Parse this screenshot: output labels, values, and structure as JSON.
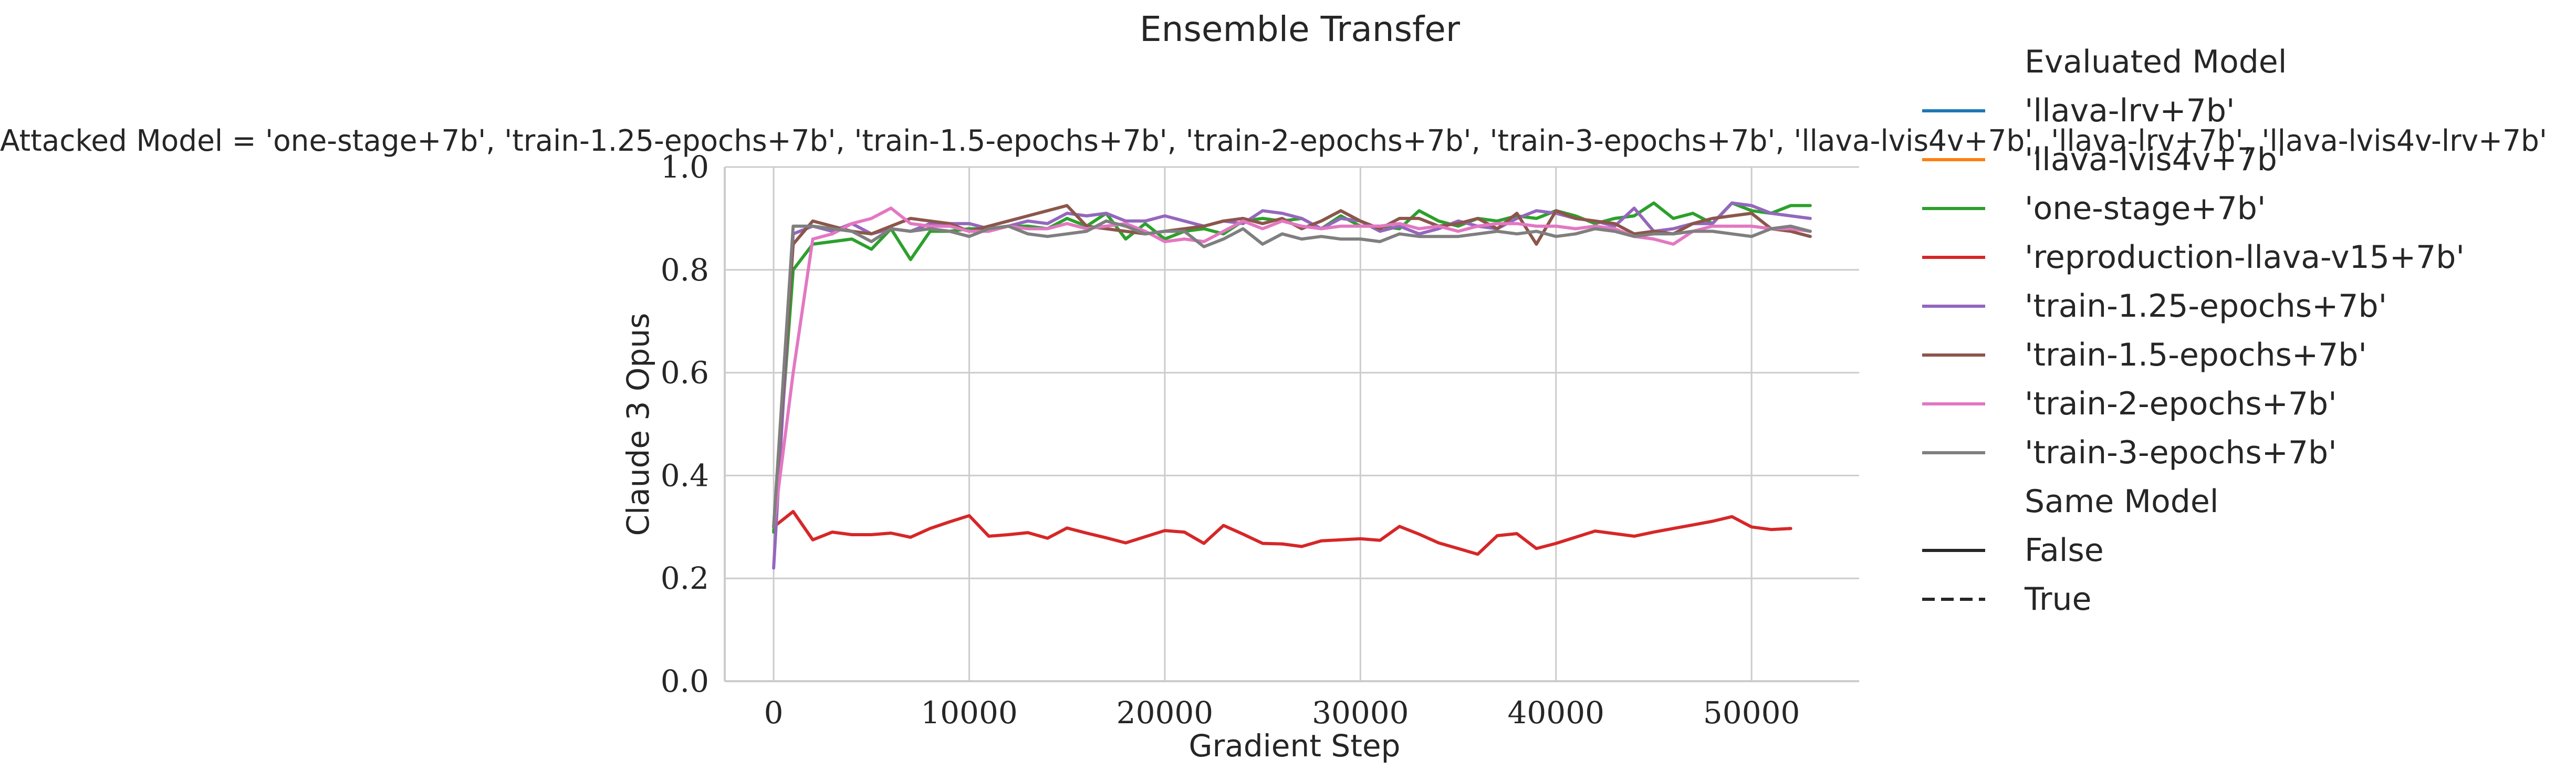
{
  "chart_data": {
    "type": "line",
    "title": "Ensemble Transfer",
    "subtitle": "Attacked Model = 'one-stage+7b', 'train-1.25-epochs+7b', 'train-1.5-epochs+7b', 'train-2-epochs+7b', 'train-3-epochs+7b', 'llava-lvis4v+7b', 'llava-lrv+7b', 'llava-lvis4v-lrv+7b'",
    "xlabel": "Gradient Step",
    "ylabel": "Claude 3 Opus",
    "xlim": [
      -2500,
      55500
    ],
    "ylim": [
      0.0,
      1.0
    ],
    "xticks": [
      0,
      10000,
      20000,
      30000,
      40000,
      50000
    ],
    "yticks": [
      0.0,
      0.2,
      0.4,
      0.6,
      0.8,
      1.0
    ],
    "grid": true,
    "legend": {
      "placement": "outside-right",
      "hue_title": "Evaluated Model",
      "style_title": "Same Model",
      "hue_entries": [
        {
          "name": "'llava-lrv+7b'",
          "color": "#1f77b4"
        },
        {
          "name": "'llava-lvis4v+7b'",
          "color": "#ff7f0e"
        },
        {
          "name": "'one-stage+7b'",
          "color": "#2ca02c"
        },
        {
          "name": "'reproduction-llava-v15+7b'",
          "color": "#d62728"
        },
        {
          "name": "'train-1.25-epochs+7b'",
          "color": "#9467bd"
        },
        {
          "name": "'train-1.5-epochs+7b'",
          "color": "#8c564b"
        },
        {
          "name": "'train-2-epochs+7b'",
          "color": "#e377c2"
        },
        {
          "name": "'train-3-epochs+7b'",
          "color": "#7f7f7f"
        }
      ],
      "style_entries": [
        {
          "name": "False",
          "dash": "solid"
        },
        {
          "name": "True",
          "dash": "dashed"
        }
      ]
    },
    "series": [
      {
        "name": "'one-stage+7b'",
        "color": "#2ca02c",
        "x": [
          0,
          1000,
          2000,
          3000,
          4000,
          5000,
          6000,
          7000,
          8000,
          9000,
          10000,
          11000,
          12000,
          13000,
          14000,
          15000,
          16000,
          17000,
          18000,
          19000,
          20000,
          21000,
          22000,
          23000,
          24000,
          25000,
          26000,
          27000,
          28000,
          29000,
          30000,
          31000,
          32000,
          33000,
          34000,
          35000,
          36000,
          37000,
          38000,
          39000,
          40000,
          41000,
          42000,
          43000,
          44000,
          45000,
          46000,
          47000,
          48000,
          49000,
          50000,
          51000,
          52000,
          53000
        ],
        "y": [
          0.29,
          0.8,
          0.85,
          0.855,
          0.86,
          0.84,
          0.88,
          0.82,
          0.875,
          0.875,
          0.88,
          0.88,
          0.885,
          0.885,
          0.88,
          0.9,
          0.885,
          0.91,
          0.86,
          0.89,
          0.86,
          0.875,
          0.88,
          0.87,
          0.895,
          0.9,
          0.895,
          0.9,
          0.88,
          0.905,
          0.885,
          0.885,
          0.88,
          0.915,
          0.895,
          0.885,
          0.9,
          0.895,
          0.905,
          0.9,
          0.915,
          0.905,
          0.89,
          0.9,
          0.905,
          0.93,
          0.9,
          0.91,
          0.89,
          0.93,
          0.915,
          0.91,
          0.925,
          0.925
        ]
      },
      {
        "name": "'reproduction-llava-v15+7b'",
        "color": "#d62728",
        "x": [
          0,
          1000,
          2000,
          3000,
          4000,
          5000,
          6000,
          7000,
          8000,
          9000,
          10000,
          11000,
          12000,
          13000,
          14000,
          15000,
          16000,
          17000,
          18000,
          19000,
          20000,
          21000,
          22000,
          23000,
          24000,
          25000,
          26000,
          27000,
          28000,
          29000,
          30000,
          31000,
          32000,
          33000,
          34000,
          35000,
          36000,
          37000,
          38000,
          39000,
          40000,
          41000,
          42000,
          43000,
          44000,
          45000,
          46000,
          47000,
          48000,
          49000,
          50000,
          51000,
          52000
        ],
        "y": [
          0.3,
          0.33,
          0.275,
          0.29,
          0.285,
          0.285,
          0.288,
          0.28,
          0.297,
          0.31,
          0.322,
          0.282,
          0.285,
          0.289,
          0.278,
          0.298,
          0.288,
          0.279,
          0.269,
          0.281,
          0.293,
          0.29,
          0.268,
          0.303,
          0.286,
          0.268,
          0.267,
          0.262,
          0.273,
          0.275,
          0.277,
          0.274,
          0.301,
          0.286,
          0.269,
          0.258,
          0.247,
          0.283,
          0.287,
          0.258,
          0.268,
          0.28,
          0.292,
          0.287,
          0.282,
          0.29,
          0.297,
          0.304,
          0.311,
          0.32,
          0.3,
          0.295,
          0.297
        ]
      },
      {
        "name": "'train-1.25-epochs+7b'",
        "color": "#9467bd",
        "x": [
          0,
          1000,
          2000,
          3000,
          4000,
          5000,
          6000,
          7000,
          8000,
          9000,
          10000,
          11000,
          12000,
          13000,
          14000,
          15000,
          16000,
          17000,
          18000,
          19000,
          20000,
          21000,
          22000,
          23000,
          24000,
          25000,
          26000,
          27000,
          28000,
          29000,
          30000,
          31000,
          32000,
          33000,
          34000,
          35000,
          36000,
          37000,
          38000,
          39000,
          40000,
          41000,
          42000,
          43000,
          44000,
          45000,
          46000,
          47000,
          48000,
          49000,
          50000,
          51000,
          52000,
          53000
        ],
        "y": [
          0.22,
          0.87,
          0.885,
          0.875,
          0.89,
          0.87,
          0.88,
          0.875,
          0.89,
          0.89,
          0.89,
          0.88,
          0.885,
          0.895,
          0.89,
          0.91,
          0.905,
          0.91,
          0.895,
          0.895,
          0.905,
          0.895,
          0.885,
          0.895,
          0.89,
          0.915,
          0.91,
          0.9,
          0.88,
          0.9,
          0.895,
          0.875,
          0.885,
          0.87,
          0.88,
          0.895,
          0.885,
          0.88,
          0.9,
          0.915,
          0.91,
          0.9,
          0.895,
          0.885,
          0.92,
          0.875,
          0.88,
          0.89,
          0.89,
          0.93,
          0.925,
          0.91,
          0.905,
          0.9
        ]
      },
      {
        "name": "'train-1.5-epochs+7b'",
        "color": "#8c564b",
        "x": [
          0,
          1000,
          2000,
          3000,
          4000,
          5000,
          6000,
          7000,
          8000,
          9000,
          10000,
          11000,
          12000,
          13000,
          14000,
          15000,
          16000,
          17000,
          18000,
          19000,
          20000,
          21000,
          22000,
          23000,
          24000,
          25000,
          26000,
          27000,
          28000,
          29000,
          30000,
          31000,
          32000,
          33000,
          34000,
          35000,
          36000,
          37000,
          38000,
          39000,
          40000,
          41000,
          42000,
          43000,
          44000,
          45000,
          46000,
          47000,
          48000,
          49000,
          50000,
          51000,
          52000,
          53000
        ],
        "y": [
          0.3,
          0.85,
          0.895,
          0.885,
          0.875,
          0.87,
          0.885,
          0.9,
          0.895,
          0.89,
          0.875,
          0.885,
          0.895,
          0.905,
          0.915,
          0.925,
          0.885,
          0.88,
          0.875,
          0.87,
          0.875,
          0.88,
          0.885,
          0.895,
          0.9,
          0.89,
          0.9,
          0.88,
          0.895,
          0.915,
          0.895,
          0.88,
          0.9,
          0.9,
          0.885,
          0.89,
          0.9,
          0.88,
          0.91,
          0.85,
          0.915,
          0.9,
          0.895,
          0.89,
          0.87,
          0.875,
          0.87,
          0.89,
          0.9,
          0.905,
          0.91,
          0.88,
          0.875,
          0.865
        ]
      },
      {
        "name": "'train-2-epochs+7b'",
        "color": "#e377c2",
        "x": [
          0,
          1000,
          2000,
          3000,
          4000,
          5000,
          6000,
          7000,
          8000,
          9000,
          10000,
          11000,
          12000,
          13000,
          14000,
          15000,
          16000,
          17000,
          18000,
          19000,
          20000,
          21000,
          22000,
          23000,
          24000,
          25000,
          26000,
          27000,
          28000,
          29000,
          30000,
          31000,
          32000,
          33000,
          34000,
          35000,
          36000,
          37000,
          38000,
          39000,
          40000,
          41000,
          42000,
          43000,
          44000,
          45000,
          46000,
          47000,
          48000,
          49000,
          50000,
          51000,
          52000,
          53000
        ],
        "y": [
          0.3,
          0.6,
          0.86,
          0.87,
          0.89,
          0.9,
          0.92,
          0.89,
          0.885,
          0.885,
          0.875,
          0.875,
          0.885,
          0.88,
          0.88,
          0.89,
          0.88,
          0.885,
          0.89,
          0.875,
          0.855,
          0.86,
          0.855,
          0.875,
          0.895,
          0.88,
          0.895,
          0.885,
          0.88,
          0.885,
          0.885,
          0.885,
          0.89,
          0.88,
          0.885,
          0.875,
          0.885,
          0.89,
          0.89,
          0.885,
          0.885,
          0.88,
          0.885,
          0.88,
          0.865,
          0.86,
          0.85,
          0.875,
          0.885,
          0.885,
          0.885,
          0.88,
          0.88,
          0.875
        ]
      },
      {
        "name": "'train-3-epochs+7b'",
        "color": "#7f7f7f",
        "x": [
          0,
          1000,
          2000,
          3000,
          4000,
          5000,
          6000,
          7000,
          8000,
          9000,
          10000,
          11000,
          12000,
          13000,
          14000,
          15000,
          16000,
          17000,
          18000,
          19000,
          20000,
          21000,
          22000,
          23000,
          24000,
          25000,
          26000,
          27000,
          28000,
          29000,
          30000,
          31000,
          32000,
          33000,
          34000,
          35000,
          36000,
          37000,
          38000,
          39000,
          40000,
          41000,
          42000,
          43000,
          44000,
          45000,
          46000,
          47000,
          48000,
          49000,
          50000,
          51000,
          52000,
          53000
        ],
        "y": [
          0.3,
          0.885,
          0.885,
          0.88,
          0.875,
          0.855,
          0.88,
          0.875,
          0.88,
          0.875,
          0.865,
          0.88,
          0.885,
          0.87,
          0.865,
          0.87,
          0.875,
          0.895,
          0.885,
          0.87,
          0.875,
          0.875,
          0.845,
          0.86,
          0.88,
          0.85,
          0.87,
          0.86,
          0.865,
          0.86,
          0.86,
          0.855,
          0.87,
          0.865,
          0.865,
          0.865,
          0.87,
          0.875,
          0.87,
          0.875,
          0.865,
          0.87,
          0.88,
          0.875,
          0.865,
          0.87,
          0.87,
          0.875,
          0.875,
          0.87,
          0.865,
          0.88,
          0.885,
          0.875
        ]
      }
    ]
  }
}
